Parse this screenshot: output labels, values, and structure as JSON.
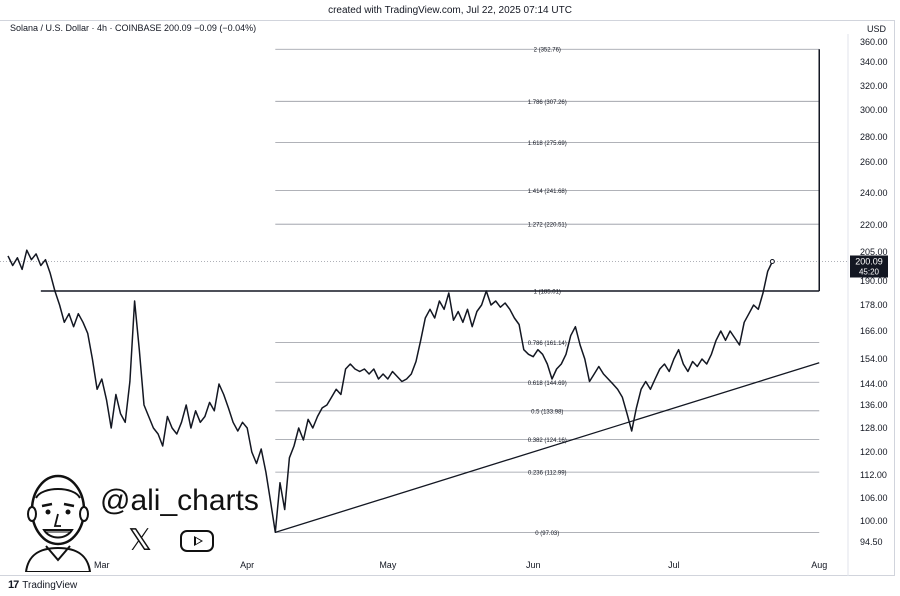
{
  "header": {
    "created": "created with TradingView.com, Jul 22, 2025 07:14 UTC"
  },
  "legend": {
    "symbol": "Solana / U.S. Dollar · 4h · COINBASE  200.09  −0.09 (−0.04%)"
  },
  "currency": "USD",
  "branding": {
    "tv_label": "TradingView",
    "tv_mark": "17",
    "handle": "@ali_charts",
    "x_glyph": "𝕏"
  },
  "price_badge": {
    "price": "200.09",
    "countdown": "45:20"
  },
  "colors": {
    "line": "#131722",
    "grid": "#9598a1",
    "badge": "#131722",
    "axis_text": "#131722"
  },
  "chart_data": {
    "type": "line",
    "title": "Solana / U.S. Dollar · 4h · COINBASE",
    "ylabel": "USD",
    "y_ticks": [
      "94.50",
      "100.00",
      "106.00",
      "112.00",
      "120.00",
      "128.00",
      "136.00",
      "144.00",
      "154.00",
      "166.00",
      "178.00",
      "190.00",
      "205.00",
      "220.00",
      "240.00",
      "260.00",
      "280.00",
      "300.00",
      "320.00",
      "340.00",
      "360.00"
    ],
    "x_ticks": [
      "Mar",
      "Apr",
      "May",
      "Jun",
      "Jul",
      "Aug"
    ],
    "x_tick_dates": [
      "2025-03-01",
      "2025-04-01",
      "2025-05-01",
      "2025-06-01",
      "2025-07-01",
      "2025-08-01"
    ],
    "x_range": [
      "2025-02-09",
      "2025-08-05"
    ],
    "fib_levels": [
      {
        "label": "2 (352.76)",
        "value": 352.76
      },
      {
        "label": "1.786 (307.26)",
        "value": 307.26
      },
      {
        "label": "1.618 (275.69)",
        "value": 275.69
      },
      {
        "label": "1.414 (241.68)",
        "value": 241.68
      },
      {
        "label": "1.272 (220.51)",
        "value": 220.51
      },
      {
        "label": "1 (185.01)",
        "value": 185.01
      },
      {
        "label": "0.786 (161.14)",
        "value": 161.14
      },
      {
        "label": "0.618 (144.69)",
        "value": 144.69
      },
      {
        "label": "0.5 (133.98)",
        "value": 133.98
      },
      {
        "label": "0.382 (124.16)",
        "value": 124.16
      },
      {
        "label": "0.236 (112.99)",
        "value": 112.99
      },
      {
        "label": "0 (97.03)",
        "value": 97.03
      }
    ],
    "fib_start": "2025-04-07",
    "fib_end": "2025-08-01",
    "resistance": {
      "value": 185.01,
      "from": "2025-02-16",
      "to": "2025-08-01"
    },
    "target_arrow": {
      "date": "2025-08-01",
      "from": 185.01,
      "to": 352.76
    },
    "trendline": {
      "from": [
        "2025-04-07",
        97.03
      ],
      "to": [
        "2025-08-01",
        152.5
      ]
    },
    "last_price": 200.09,
    "series": [
      {
        "values": [
          [
            "2025-02-09",
            203
          ],
          [
            "2025-02-10",
            198
          ],
          [
            "2025-02-11",
            202
          ],
          [
            "2025-02-12",
            196
          ],
          [
            "2025-02-13",
            206
          ],
          [
            "2025-02-14",
            201
          ],
          [
            "2025-02-15",
            204
          ],
          [
            "2025-02-16",
            198
          ],
          [
            "2025-02-17",
            201
          ],
          [
            "2025-02-18",
            194
          ],
          [
            "2025-02-19",
            185
          ],
          [
            "2025-02-20",
            178
          ],
          [
            "2025-02-21",
            170
          ],
          [
            "2025-02-22",
            174
          ],
          [
            "2025-02-23",
            168
          ],
          [
            "2025-02-24",
            174
          ],
          [
            "2025-02-25",
            170
          ],
          [
            "2025-02-26",
            165
          ],
          [
            "2025-02-27",
            154
          ],
          [
            "2025-02-28",
            142
          ],
          [
            "2025-03-01",
            146
          ],
          [
            "2025-03-02",
            138
          ],
          [
            "2025-03-03",
            128
          ],
          [
            "2025-03-04",
            140
          ],
          [
            "2025-03-05",
            133
          ],
          [
            "2025-03-06",
            130
          ],
          [
            "2025-03-07",
            145
          ],
          [
            "2025-03-08",
            180
          ],
          [
            "2025-03-09",
            158
          ],
          [
            "2025-03-10",
            136
          ],
          [
            "2025-03-11",
            132
          ],
          [
            "2025-03-12",
            128
          ],
          [
            "2025-03-13",
            126
          ],
          [
            "2025-03-14",
            122
          ],
          [
            "2025-03-15",
            132
          ],
          [
            "2025-03-16",
            128
          ],
          [
            "2025-03-17",
            126
          ],
          [
            "2025-03-18",
            130
          ],
          [
            "2025-03-19",
            136
          ],
          [
            "2025-03-20",
            128
          ],
          [
            "2025-03-21",
            134
          ],
          [
            "2025-03-22",
            130
          ],
          [
            "2025-03-23",
            132
          ],
          [
            "2025-03-24",
            137
          ],
          [
            "2025-03-25",
            134
          ],
          [
            "2025-03-26",
            144
          ],
          [
            "2025-03-27",
            140
          ],
          [
            "2025-03-28",
            135
          ],
          [
            "2025-03-29",
            130
          ],
          [
            "2025-03-30",
            127
          ],
          [
            "2025-03-31",
            130
          ],
          [
            "2025-04-01",
            128
          ],
          [
            "2025-04-02",
            120
          ],
          [
            "2025-04-03",
            116
          ],
          [
            "2025-04-04",
            121
          ],
          [
            "2025-04-05",
            113
          ],
          [
            "2025-04-06",
            105
          ],
          [
            "2025-04-07",
            97.03
          ],
          [
            "2025-04-08",
            110
          ],
          [
            "2025-04-09",
            103
          ],
          [
            "2025-04-10",
            118
          ],
          [
            "2025-04-11",
            122
          ],
          [
            "2025-04-12",
            128
          ],
          [
            "2025-04-13",
            124
          ],
          [
            "2025-04-14",
            131
          ],
          [
            "2025-04-15",
            128
          ],
          [
            "2025-04-16",
            132
          ],
          [
            "2025-04-17",
            135
          ],
          [
            "2025-04-18",
            136
          ],
          [
            "2025-04-19",
            139
          ],
          [
            "2025-04-20",
            142
          ],
          [
            "2025-04-21",
            140
          ],
          [
            "2025-04-22",
            150
          ],
          [
            "2025-04-23",
            152
          ],
          [
            "2025-04-24",
            150
          ],
          [
            "2025-04-25",
            149
          ],
          [
            "2025-04-26",
            150
          ],
          [
            "2025-04-27",
            148
          ],
          [
            "2025-04-28",
            150
          ],
          [
            "2025-04-29",
            146
          ],
          [
            "2025-04-30",
            148
          ],
          [
            "2025-05-01",
            146
          ],
          [
            "2025-05-02",
            149
          ],
          [
            "2025-05-03",
            147
          ],
          [
            "2025-05-04",
            145
          ],
          [
            "2025-05-05",
            146
          ],
          [
            "2025-05-06",
            148
          ],
          [
            "2025-05-07",
            153
          ],
          [
            "2025-05-08",
            162
          ],
          [
            "2025-05-09",
            172
          ],
          [
            "2025-05-10",
            176
          ],
          [
            "2025-05-11",
            172
          ],
          [
            "2025-05-12",
            180
          ],
          [
            "2025-05-13",
            176
          ],
          [
            "2025-05-14",
            184
          ],
          [
            "2025-05-15",
            171
          ],
          [
            "2025-05-16",
            175
          ],
          [
            "2025-05-17",
            170
          ],
          [
            "2025-05-18",
            176
          ],
          [
            "2025-05-19",
            168
          ],
          [
            "2025-05-20",
            175
          ],
          [
            "2025-05-21",
            178
          ],
          [
            "2025-05-22",
            185
          ],
          [
            "2025-05-23",
            178
          ],
          [
            "2025-05-24",
            180
          ],
          [
            "2025-05-25",
            177
          ],
          [
            "2025-05-26",
            179
          ],
          [
            "2025-05-27",
            176
          ],
          [
            "2025-05-28",
            172
          ],
          [
            "2025-05-29",
            169
          ],
          [
            "2025-05-30",
            158
          ],
          [
            "2025-05-31",
            156
          ],
          [
            "2025-06-01",
            155
          ],
          [
            "2025-06-02",
            158
          ],
          [
            "2025-06-03",
            156
          ],
          [
            "2025-06-04",
            152
          ],
          [
            "2025-06-05",
            146
          ],
          [
            "2025-06-06",
            150
          ],
          [
            "2025-06-07",
            152
          ],
          [
            "2025-06-08",
            156
          ],
          [
            "2025-06-09",
            164
          ],
          [
            "2025-06-10",
            168
          ],
          [
            "2025-06-11",
            160
          ],
          [
            "2025-06-12",
            154
          ],
          [
            "2025-06-13",
            145
          ],
          [
            "2025-06-14",
            148
          ],
          [
            "2025-06-15",
            151
          ],
          [
            "2025-06-16",
            148
          ],
          [
            "2025-06-17",
            146
          ],
          [
            "2025-06-18",
            144
          ],
          [
            "2025-06-19",
            142
          ],
          [
            "2025-06-20",
            139
          ],
          [
            "2025-06-21",
            133
          ],
          [
            "2025-06-22",
            127
          ],
          [
            "2025-06-23",
            135
          ],
          [
            "2025-06-24",
            142
          ],
          [
            "2025-06-25",
            145
          ],
          [
            "2025-06-26",
            142
          ],
          [
            "2025-06-27",
            146
          ],
          [
            "2025-06-28",
            150
          ],
          [
            "2025-06-29",
            152
          ],
          [
            "2025-06-30",
            149
          ],
          [
            "2025-07-01",
            154
          ],
          [
            "2025-07-02",
            158
          ],
          [
            "2025-07-03",
            152
          ],
          [
            "2025-07-04",
            149
          ],
          [
            "2025-07-05",
            153
          ],
          [
            "2025-07-06",
            151
          ],
          [
            "2025-07-07",
            154
          ],
          [
            "2025-07-08",
            152
          ],
          [
            "2025-07-09",
            156
          ],
          [
            "2025-07-10",
            162
          ],
          [
            "2025-07-11",
            166
          ],
          [
            "2025-07-12",
            162
          ],
          [
            "2025-07-13",
            166
          ],
          [
            "2025-07-14",
            163
          ],
          [
            "2025-07-15",
            160
          ],
          [
            "2025-07-16",
            170
          ],
          [
            "2025-07-17",
            174
          ],
          [
            "2025-07-18",
            178
          ],
          [
            "2025-07-19",
            176
          ],
          [
            "2025-07-20",
            184
          ],
          [
            "2025-07-21",
            195
          ],
          [
            "2025-07-22",
            200.09
          ]
        ]
      }
    ]
  }
}
